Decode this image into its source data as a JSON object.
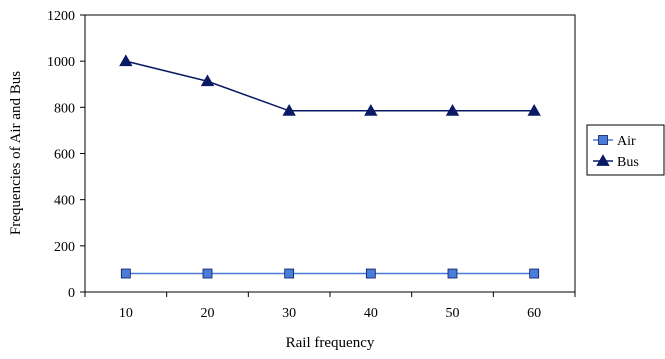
{
  "chart_data": {
    "type": "line",
    "x": [
      10,
      20,
      30,
      40,
      50,
      60
    ],
    "categories": [
      "10",
      "20",
      "30",
      "40",
      "50",
      "60"
    ],
    "series": [
      {
        "name": "Air",
        "values": [
          80,
          80,
          80,
          80,
          80,
          80
        ],
        "color": "#4a7dd8",
        "marker": "square"
      },
      {
        "name": "Bus",
        "values": [
          1000,
          913,
          785,
          785,
          785,
          785
        ],
        "color": "#0a1a66",
        "marker": "triangle"
      }
    ],
    "xlabel": "Rail frequency",
    "ylabel": "Frequencies of Air and Bus",
    "ylim": [
      0,
      1200
    ],
    "yticks": [
      0,
      200,
      400,
      600,
      800,
      1000,
      1200
    ],
    "grid": false,
    "legend_position": "right"
  }
}
